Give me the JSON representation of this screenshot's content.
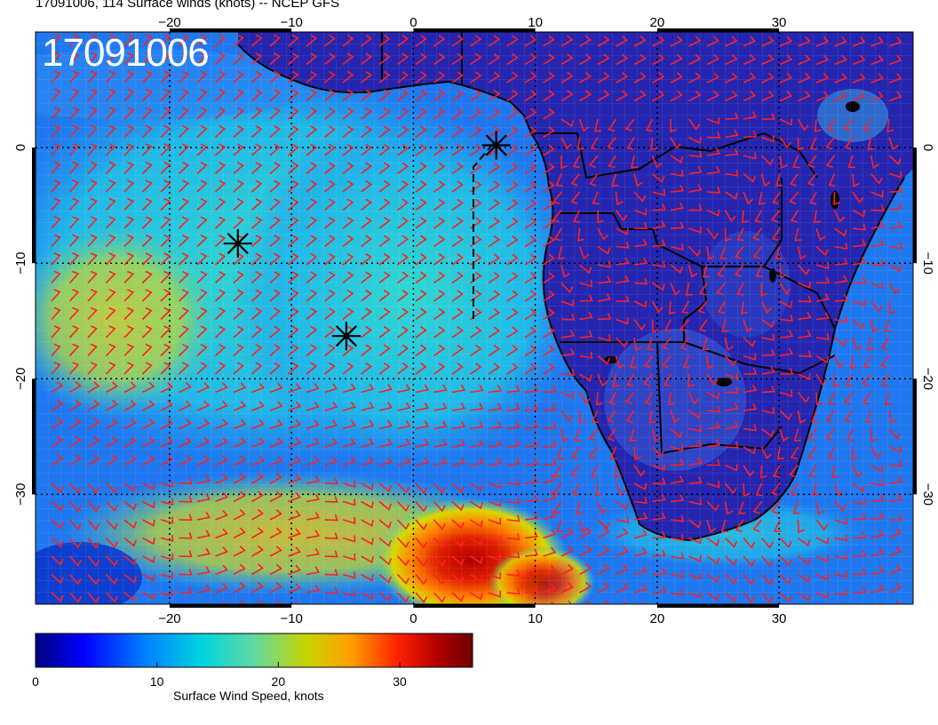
{
  "header": {
    "title": "17091006, 114 Surface winds (knots) -- NCEP GFS",
    "stamp": "17091006"
  },
  "map": {
    "lon_range": [
      -31,
      41
    ],
    "lat_range": [
      -39.5,
      10
    ],
    "lon_ticks": [
      -20,
      -10,
      0,
      10,
      20,
      30
    ],
    "lat_ticks": [
      0,
      -10,
      -20,
      -30
    ],
    "lon_tick_labels": [
      "−20",
      "−10",
      "0",
      "10",
      "20",
      "30"
    ],
    "lat_tick_labels": [
      "0",
      "−10",
      "−20",
      "−30"
    ],
    "grid": true,
    "markers": [
      {
        "name": "marker-1",
        "lon": 6.8,
        "lat": 0.2
      },
      {
        "name": "marker-2",
        "lon": -14.4,
        "lat": -8.3
      },
      {
        "name": "marker-3",
        "lon": -5.5,
        "lat": -16.3
      }
    ]
  },
  "colorbar": {
    "label": "Surface Wind Speed, knots",
    "ticks": [
      0,
      10,
      20,
      30
    ],
    "tick_labels": [
      "0",
      "10",
      "20",
      "30"
    ],
    "min": 0,
    "max": 36,
    "colors": [
      "#00007f",
      "#0000ff",
      "#007fff",
      "#00d4e0",
      "#5fd9a0",
      "#c8d400",
      "#ffa000",
      "#ff2000",
      "#b00000",
      "#700000"
    ]
  },
  "colors": {
    "land_fill": "#2525b0",
    "wind_barbs": "#ff2020",
    "coastline": "#000000"
  }
}
